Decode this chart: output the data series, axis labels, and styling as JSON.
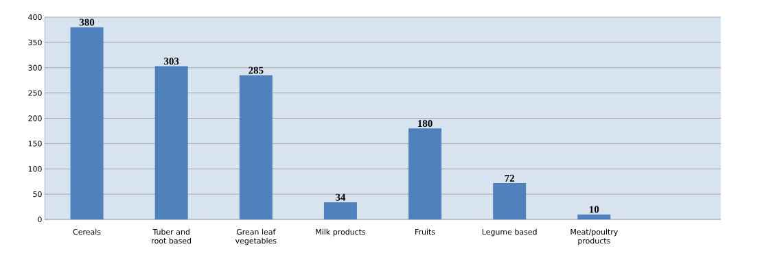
{
  "chart_data": {
    "type": "bar",
    "categories": [
      "Cereals",
      "Tuber and root based",
      "Grean leaf vegetables",
      "Milk products",
      "Fruits",
      "Legume based",
      "Meat/poultry products",
      null
    ],
    "values": [
      380,
      303,
      285,
      34,
      180,
      72,
      10,
      null
    ],
    "color": "#4f81bd",
    "ylim": [
      0,
      400
    ],
    "yticks": [
      0,
      50,
      100,
      150,
      200,
      250,
      300,
      350,
      400
    ],
    "grid": "y",
    "data_labels": true
  }
}
